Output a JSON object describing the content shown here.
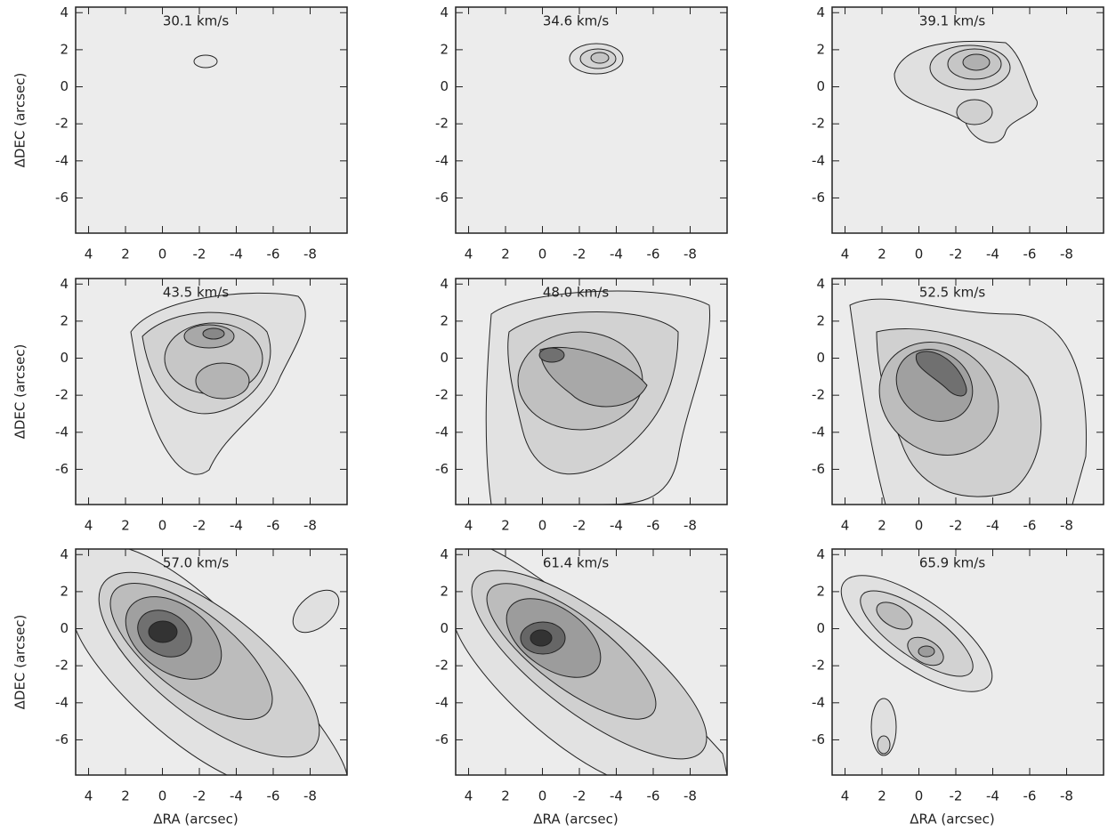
{
  "chart_data": [
    {
      "type": "contour",
      "title": "30.1 km/s",
      "xlim": [
        4.7,
        -10
      ],
      "ylim": [
        -7.9,
        4.3
      ],
      "xticks": [
        4,
        2,
        0,
        -2,
        -4,
        -6,
        -8
      ],
      "yticks": [
        4,
        2,
        0,
        -2,
        -4,
        -6
      ],
      "ylabel": "ΔDEC (arcsec)"
    },
    {
      "type": "contour",
      "title": "34.6 km/s",
      "xlim": [
        4.7,
        -10
      ],
      "ylim": [
        -7.9,
        4.3
      ],
      "xticks": [
        4,
        2,
        0,
        -2,
        -4,
        -6,
        -8
      ],
      "yticks": [
        4,
        2,
        0,
        -2,
        -4,
        -6
      ]
    },
    {
      "type": "contour",
      "title": "39.1 km/s",
      "xlim": [
        4.7,
        -10
      ],
      "ylim": [
        -7.9,
        4.3
      ],
      "xticks": [
        4,
        2,
        0,
        -2,
        -4,
        -6,
        -8
      ],
      "yticks": [
        4,
        2,
        0,
        -2,
        -4,
        -6
      ]
    },
    {
      "type": "contour",
      "title": "43.5 km/s",
      "xlim": [
        4.7,
        -10
      ],
      "ylim": [
        -7.9,
        4.3
      ],
      "xticks": [
        4,
        2,
        0,
        -2,
        -4,
        -6,
        -8
      ],
      "yticks": [
        4,
        2,
        0,
        -2,
        -4,
        -6
      ],
      "ylabel": "ΔDEC (arcsec)"
    },
    {
      "type": "contour",
      "title": "48.0 km/s",
      "xlim": [
        4.7,
        -10
      ],
      "ylim": [
        -7.9,
        4.3
      ],
      "xticks": [
        4,
        2,
        0,
        -2,
        -4,
        -6,
        -8
      ],
      "yticks": [
        4,
        2,
        0,
        -2,
        -4,
        -6
      ]
    },
    {
      "type": "contour",
      "title": "52.5 km/s",
      "xlim": [
        4.7,
        -10
      ],
      "ylim": [
        -7.9,
        4.3
      ],
      "xticks": [
        4,
        2,
        0,
        -2,
        -4,
        -6,
        -8
      ],
      "yticks": [
        4,
        2,
        0,
        -2,
        -4,
        -6
      ]
    },
    {
      "type": "contour",
      "title": "57.0 km/s",
      "xlim": [
        4.7,
        -10
      ],
      "ylim": [
        -7.9,
        4.3
      ],
      "xticks": [
        4,
        2,
        0,
        -2,
        -4,
        -6,
        -8
      ],
      "yticks": [
        4,
        2,
        0,
        -2,
        -4,
        -6
      ],
      "xlabel": "ΔRA (arcsec)",
      "ylabel": "ΔDEC (arcsec)"
    },
    {
      "type": "contour",
      "title": "61.4 km/s",
      "xlim": [
        4.7,
        -10
      ],
      "ylim": [
        -7.9,
        4.3
      ],
      "xticks": [
        4,
        2,
        0,
        -2,
        -4,
        -6,
        -8
      ],
      "yticks": [
        4,
        2,
        0,
        -2,
        -4,
        -6
      ],
      "xlabel": "ΔRA (arcsec)"
    },
    {
      "type": "contour",
      "title": "65.9 km/s",
      "xlim": [
        4.7,
        -10
      ],
      "ylim": [
        -7.9,
        4.3
      ],
      "xticks": [
        4,
        2,
        0,
        -2,
        -4,
        -6,
        -8
      ],
      "yticks": [
        4,
        2,
        0,
        -2,
        -4,
        -6
      ],
      "xlabel": "ΔRA (arcsec)"
    }
  ]
}
